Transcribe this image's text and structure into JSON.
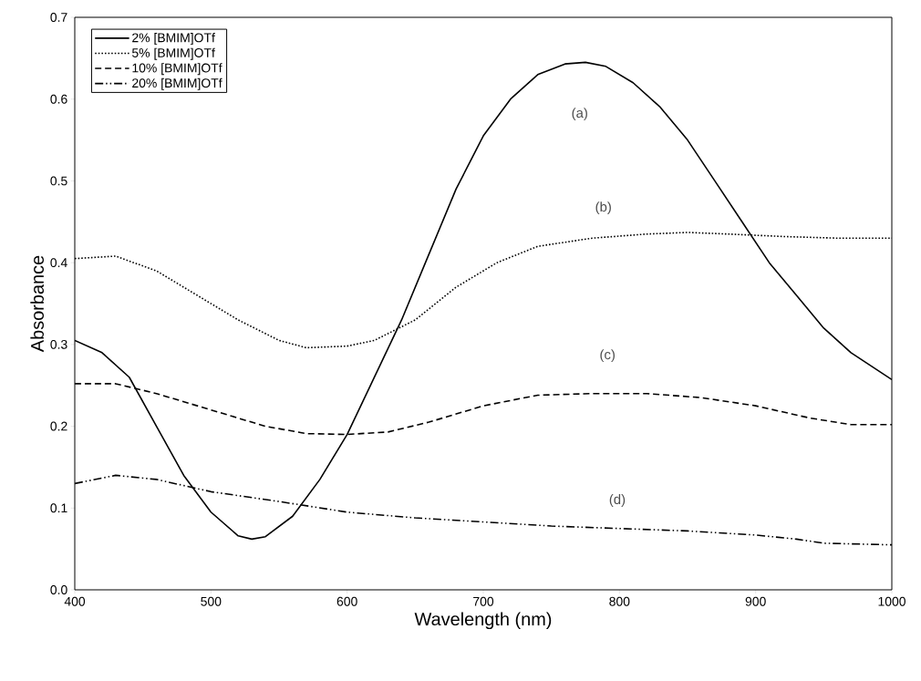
{
  "chart_data": {
    "type": "line",
    "xlabel": "Wavelength (nm)",
    "ylabel": "Absorbance",
    "xlim": [
      400,
      1000
    ],
    "ylim": [
      0,
      0.7
    ],
    "xticks": [
      400,
      500,
      600,
      700,
      800,
      900,
      1000
    ],
    "yticks": [
      {
        "value": 0,
        "label": "0.0"
      },
      {
        "value": 0.1,
        "label": "0.1"
      },
      {
        "value": 0.2,
        "label": "0.2"
      },
      {
        "value": 0.3,
        "label": "0.3"
      },
      {
        "value": 0.4,
        "label": "0.4"
      },
      {
        "value": 0.5,
        "label": "0.5"
      },
      {
        "value": 0.6,
        "label": "0.6"
      },
      {
        "value": 0.7,
        "label": "0.7"
      }
    ],
    "legend": "top left",
    "grid": false,
    "marker": "none",
    "series": [
      {
        "name": "2% [BMIM]OTf",
        "color": "#000000",
        "line_style": "solid",
        "x": [
          400,
          420,
          440,
          460,
          480,
          500,
          520,
          530,
          540,
          560,
          580,
          600,
          620,
          640,
          660,
          680,
          700,
          720,
          740,
          760,
          775,
          790,
          810,
          830,
          850,
          870,
          890,
          910,
          930,
          950,
          970,
          1000
        ],
        "values": [
          0.305,
          0.29,
          0.26,
          0.2,
          0.14,
          0.095,
          0.066,
          0.062,
          0.065,
          0.09,
          0.135,
          0.19,
          0.26,
          0.33,
          0.41,
          0.49,
          0.555,
          0.6,
          0.63,
          0.643,
          0.645,
          0.64,
          0.62,
          0.59,
          0.55,
          0.5,
          0.45,
          0.4,
          0.36,
          0.32,
          0.29,
          0.257
        ]
      },
      {
        "name": "5% [BMIM]OTf",
        "color": "#000000",
        "line_style": "dotted",
        "x": [
          400,
          430,
          460,
          490,
          520,
          550,
          570,
          600,
          620,
          650,
          680,
          710,
          740,
          780,
          820,
          850,
          880,
          920,
          960,
          1000
        ],
        "values": [
          0.405,
          0.408,
          0.39,
          0.36,
          0.33,
          0.305,
          0.296,
          0.298,
          0.305,
          0.33,
          0.37,
          0.4,
          0.42,
          0.43,
          0.435,
          0.437,
          0.435,
          0.432,
          0.43,
          0.43
        ]
      },
      {
        "name": "10% [BMIM]OTf",
        "color": "#000000",
        "line_style": "dashed",
        "x": [
          400,
          430,
          460,
          500,
          540,
          570,
          600,
          630,
          660,
          700,
          740,
          780,
          820,
          860,
          900,
          940,
          970,
          1000
        ],
        "values": [
          0.252,
          0.252,
          0.24,
          0.22,
          0.2,
          0.191,
          0.19,
          0.193,
          0.205,
          0.225,
          0.238,
          0.24,
          0.24,
          0.235,
          0.225,
          0.21,
          0.202,
          0.202
        ]
      },
      {
        "name": "20% [BMIM]OTf",
        "color": "#000000",
        "line_style": "dashdot",
        "x": [
          400,
          430,
          460,
          500,
          550,
          600,
          650,
          700,
          750,
          800,
          850,
          900,
          930,
          950,
          1000
        ],
        "values": [
          0.13,
          0.14,
          0.135,
          0.12,
          0.108,
          0.095,
          0.088,
          0.083,
          0.078,
          0.075,
          0.072,
          0.067,
          0.062,
          0.057,
          0.055
        ]
      }
    ],
    "annotations": [
      "(a)",
      "(b)",
      "(c)",
      "(d)"
    ]
  }
}
